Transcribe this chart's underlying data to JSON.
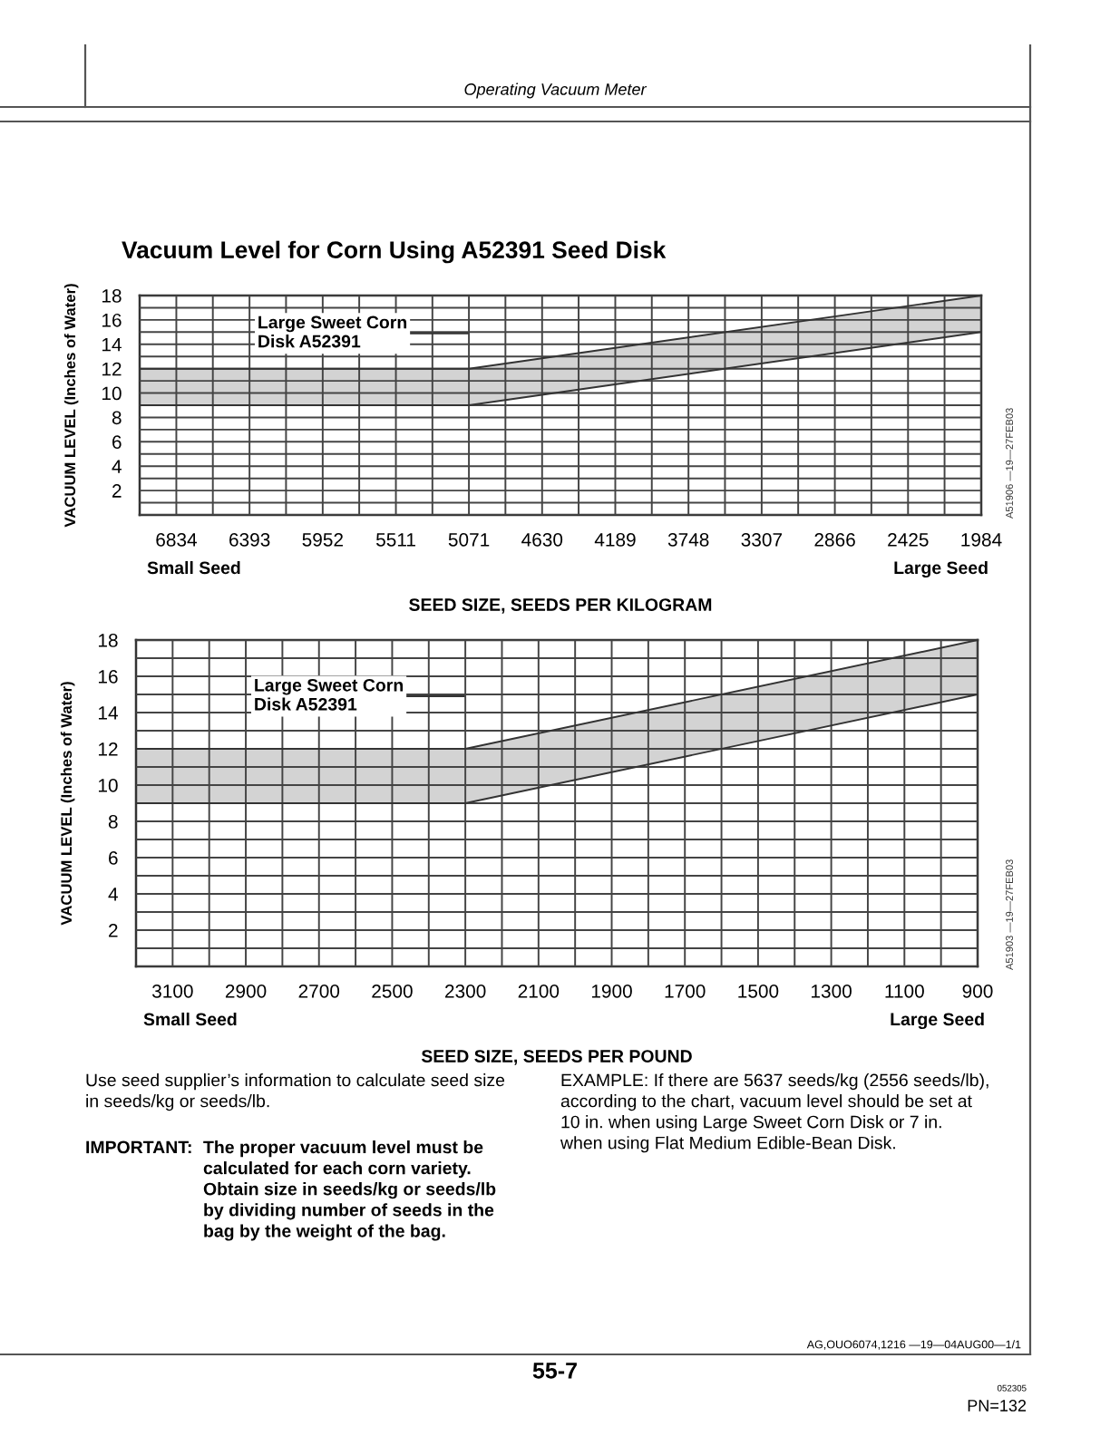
{
  "chart_data": [
    {
      "type": "line",
      "title": "Vacuum Level for Corn Using A52391 Seed Disk",
      "xlabel": "SEED SIZE, SEEDS PER KILOGRAM",
      "ylabel": "VACUUM LEVEL (Inches of Water)",
      "series": [
        {
          "color": "#333333",
          "x": [
            7055,
            5071,
            1984
          ],
          "values": [
            9,
            9,
            15
          ],
          "lower": [
            9,
            9,
            15
          ],
          "upper": [
            12,
            12,
            18
          ]
        },
        {
          "color": "#333333",
          "x": [
            7055,
            5071,
            1984
          ],
          "values": [
            12,
            12,
            18
          ]
        }
      ],
      "xlim": [
        7055,
        1984
      ],
      "xticks": [
        6834,
        {
          "value": 6614,
          "label": null
        },
        6393,
        {
          "value": 6173,
          "label": null
        },
        5952,
        {
          "value": 5732,
          "label": null
        },
        5511,
        {
          "value": 5291,
          "label": null
        },
        5071,
        {
          "value": 4851,
          "label": null
        },
        4630,
        {
          "value": 4410,
          "label": null
        },
        4189,
        {
          "value": 3969,
          "label": null
        },
        3748,
        {
          "value": 3528,
          "label": null
        },
        3307,
        {
          "value": 3087,
          "label": null
        },
        2866,
        {
          "value": 2646,
          "label": null
        },
        2425,
        {
          "value": 2205,
          "label": null
        },
        1984
      ],
      "ylim": [
        0,
        18
      ],
      "yticks": [
        {
          "value": 0,
          "label": null
        },
        {
          "value": 1,
          "label": null
        },
        2,
        {
          "value": 3,
          "label": null
        },
        4,
        {
          "value": 5,
          "label": null
        },
        6,
        {
          "value": 7,
          "label": null
        },
        8,
        {
          "value": 9,
          "label": null
        },
        10,
        {
          "value": 11,
          "label": null
        },
        12,
        {
          "value": 13,
          "label": null
        },
        14,
        {
          "value": 15,
          "label": null
        },
        16,
        {
          "value": 17,
          "label": null
        },
        18
      ],
      "grid": true,
      "annotations": [
        "Operating Vacuum Meter",
        "Large Sweet Corn\nDisk A52391",
        "Small Seed",
        "Large Seed",
        "A51906 —19—27FEB03"
      ]
    },
    {
      "type": "line",
      "xlabel": "SEED SIZE, SEEDS PER POUND",
      "ylabel": "VACUUM LEVEL (Inches of Water)",
      "series": [
        {
          "color": "#333333",
          "x": [
            3200,
            2300,
            900
          ],
          "values": [
            9,
            9,
            15
          ],
          "lower": [
            9,
            9,
            15
          ],
          "upper": [
            12,
            12,
            18
          ]
        },
        {
          "color": "#333333",
          "x": [
            3200,
            2300,
            900
          ],
          "values": [
            12,
            12,
            18
          ]
        }
      ],
      "xlim": [
        3200,
        900
      ],
      "xticks": [
        3100,
        {
          "value": 3000,
          "label": null
        },
        2900,
        {
          "value": 2800,
          "label": null
        },
        2700,
        {
          "value": 2600,
          "label": null
        },
        2500,
        {
          "value": 2400,
          "label": null
        },
        2300,
        {
          "value": 2200,
          "label": null
        },
        2100,
        {
          "value": 2000,
          "label": null
        },
        1900,
        {
          "value": 1800,
          "label": null
        },
        1700,
        {
          "value": 1600,
          "label": null
        },
        1500,
        {
          "value": 1400,
          "label": null
        },
        1300,
        {
          "value": 1200,
          "label": null
        },
        1100,
        {
          "value": 1000,
          "label": null
        },
        900
      ],
      "ylim": [
        0,
        18
      ],
      "yticks": [
        {
          "value": 0,
          "label": null
        },
        {
          "value": 1,
          "label": null
        },
        2,
        {
          "value": 3,
          "label": null
        },
        4,
        {
          "value": 5,
          "label": null
        },
        6,
        {
          "value": 7,
          "label": null
        },
        8,
        {
          "value": 9,
          "label": null
        },
        10,
        {
          "value": 11,
          "label": null
        },
        12,
        {
          "value": 13,
          "label": null
        },
        14,
        {
          "value": 15,
          "label": null
        },
        16,
        {
          "value": 17,
          "label": null
        },
        18
      ],
      "grid": true,
      "annotations": [
        "Large Sweet Corn\nDisk A52391",
        "Small Seed",
        "Large Seed",
        "A51903 —19—27FEB03",
        "Use seed supplier’s information to calculate seed size\nin seeds/kg or seeds/lb.",
        "IMPORTANT:",
        "The proper vacuum level must be\ncalculated for each corn variety.\nObtain size in seeds/kg or seeds/lb\nby dividing number of seeds in the\nbag by the weight of the bag.",
        "EXAMPLE: If there are 5637 seeds/kg (2556 seeds/lb),\naccording to the chart, vacuum level should be set at\n10 in. when using Large Sweet Corn Disk or 7 in.\nwhen using Flat Medium Edible-Bean Disk.",
        "AG,OUO6074,1216 —19—04AUG00—1/1",
        "55-7",
        "052305",
        "PN=132"
      ]
    }
  ]
}
